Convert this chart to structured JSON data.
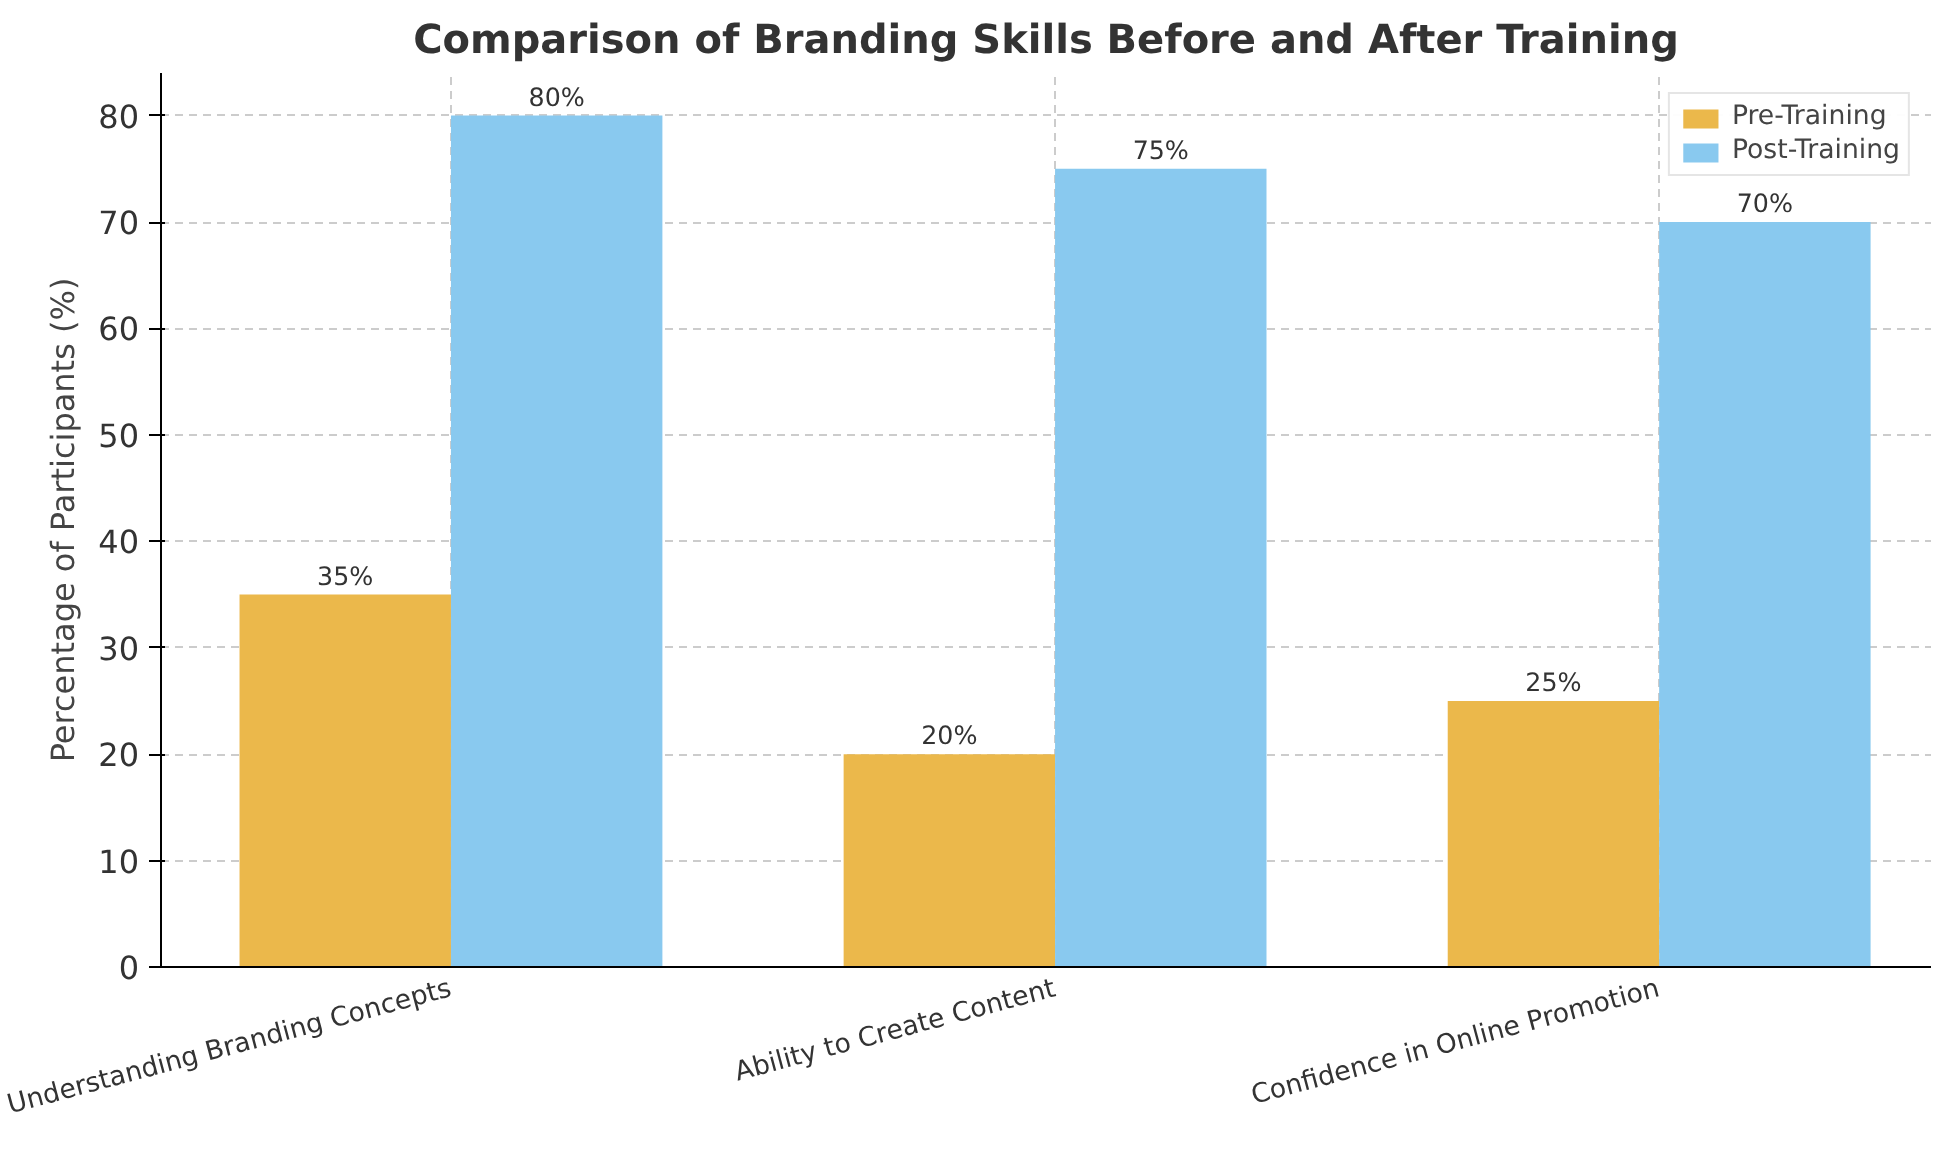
{
  "chart_data": {
    "type": "bar",
    "title": "Comparison of Branding Skills Before and After Training",
    "ylabel": "Percentage of Participants (%)",
    "categories": [
      "Understanding Branding Concepts",
      "Ability to Create Content",
      "Confidence in Online Promotion"
    ],
    "series": [
      {
        "name": "Pre-Training",
        "color": "#ebb84b",
        "values": [
          35,
          20,
          25
        ],
        "value_labels": [
          "35%",
          "20%",
          "25%"
        ]
      },
      {
        "name": "Post-Training",
        "color": "#89c9ef",
        "values": [
          80,
          75,
          70
        ],
        "value_labels": [
          "80%",
          "75%",
          "70%"
        ]
      }
    ],
    "ylim": [
      0,
      84
    ],
    "yticks": [
      0,
      10,
      20,
      30,
      40,
      50,
      60,
      70,
      80
    ],
    "grid": true,
    "legend": "top right"
  }
}
